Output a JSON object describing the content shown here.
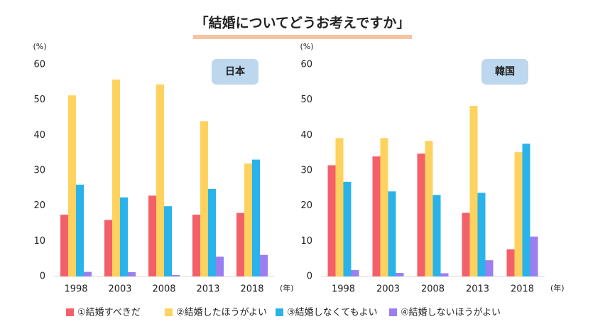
{
  "title": "「結婚についてどうお考えですか」",
  "chart_data": [
    {
      "type": "bar",
      "title": "日本",
      "y_label": "(%)",
      "x_label": "(年)",
      "categories": [
        "1998",
        "2003",
        "2008",
        "2013",
        "2018"
      ],
      "series": [
        {
          "name": "①結婚すべきだ",
          "color": "#f4606a",
          "values": [
            17.5,
            16,
            22.9,
            17.5,
            18
          ]
        },
        {
          "name": "②結婚したほうがよい",
          "color": "#fdd25f",
          "values": [
            51.3,
            55.8,
            54.4,
            44,
            32
          ]
        },
        {
          "name": "③結婚しなくてもよい",
          "color": "#2ab3ea",
          "values": [
            26,
            22.4,
            19.9,
            24.8,
            33.1
          ]
        },
        {
          "name": "④結婚しないほうがよい",
          "color": "#9b7ef0",
          "values": [
            1.3,
            1.2,
            0.4,
            5.6,
            6.1
          ]
        }
      ],
      "ylim": [
        0,
        60
      ],
      "yticks": [
        0,
        10,
        20,
        30,
        40,
        50,
        60
      ]
    },
    {
      "type": "bar",
      "title": "韓国",
      "y_label": "(%)",
      "x_label": "(年)",
      "categories": [
        "1998",
        "2003",
        "2008",
        "2013",
        "2018"
      ],
      "series": [
        {
          "name": "①結婚すべきだ",
          "color": "#f4606a",
          "values": [
            31.5,
            34,
            34.8,
            18,
            7.7
          ]
        },
        {
          "name": "②結婚したほうがよい",
          "color": "#fdd25f",
          "values": [
            39.2,
            39.2,
            38.4,
            48.3,
            35.2
          ]
        },
        {
          "name": "③結婚しなくてもよい",
          "color": "#2ab3ea",
          "values": [
            26.8,
            24.1,
            23.1,
            23.7,
            37.6
          ]
        },
        {
          "name": "④結婚しないほうがよい",
          "color": "#9b7ef0",
          "values": [
            1.8,
            1,
            0.9,
            4.6,
            11.3
          ]
        }
      ],
      "ylim": [
        0,
        60
      ],
      "yticks": [
        0,
        10,
        20,
        30,
        40,
        50,
        60
      ]
    }
  ]
}
